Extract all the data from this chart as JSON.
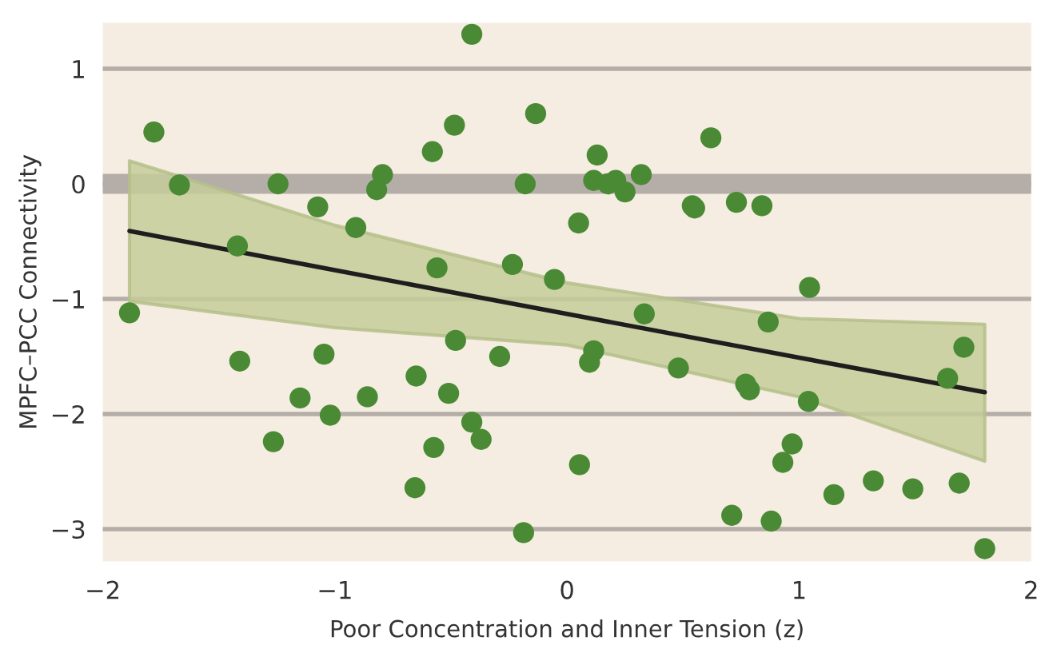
{
  "chart_data": {
    "type": "scatter",
    "xlabel": "Poor Concentration and Inner Tension (z)",
    "ylabel": "MPFC–PCC Connectivity",
    "xlim": [
      -2,
      2
    ],
    "ylim": [
      -3.28,
      1.4
    ],
    "xticks": [
      {
        "value": -2,
        "label": "−2"
      },
      {
        "value": -1,
        "label": "−1"
      },
      0,
      1,
      2
    ],
    "yticks": [
      {
        "value": -3,
        "label": "−3"
      },
      {
        "value": -2,
        "label": "−2"
      },
      {
        "value": -1,
        "label": "−1"
      },
      0,
      1
    ],
    "grid": "y",
    "ref_lines": [
      {
        "axis": "y",
        "value": 0,
        "color": "#b5aea8"
      }
    ],
    "series": [
      {
        "color": "#4a8a35",
        "marker": "circle",
        "x": [
          -1.885,
          -1.78,
          -1.67,
          -1.42,
          -1.245,
          -1.074,
          -0.91,
          -0.82,
          -0.795,
          -0.58,
          -0.485,
          -0.41,
          -0.56,
          -0.235,
          -0.18,
          -0.135,
          -0.054,
          0.13,
          0.05,
          0.115,
          0.176,
          0.21,
          0.25,
          0.32,
          0.62,
          0.54,
          0.55,
          0.73,
          0.84,
          1.045,
          0.333,
          -1.41,
          -1.047,
          -1.15,
          -1.02,
          -1.265,
          -0.86,
          -0.65,
          -0.48,
          -0.51,
          -0.29,
          -0.41,
          -0.37,
          -0.574,
          -0.655,
          -0.187,
          0.867,
          0.115,
          0.097,
          0.48,
          0.77,
          0.786,
          1.04,
          1.71,
          1.64,
          0.97,
          0.93,
          0.054,
          1.15,
          1.32,
          1.49,
          1.69,
          0.71,
          0.88,
          1.8
        ],
        "values": [
          -1.12,
          0.45,
          -0.01,
          -0.54,
          0.0,
          -0.2,
          -0.38,
          -0.05,
          0.08,
          0.28,
          0.51,
          1.3,
          -0.73,
          -0.7,
          0.0,
          0.61,
          -0.83,
          0.25,
          -0.34,
          0.03,
          0.0,
          0.03,
          -0.07,
          0.08,
          0.4,
          -0.19,
          -0.21,
          -0.16,
          -0.19,
          -0.9,
          -1.13,
          -1.54,
          -1.48,
          -1.86,
          -2.01,
          -2.24,
          -1.85,
          -1.67,
          -1.36,
          -1.82,
          -1.5,
          -2.07,
          -2.22,
          -2.29,
          -2.64,
          -3.03,
          -1.2,
          -1.45,
          -1.55,
          -1.6,
          -1.74,
          -1.79,
          -1.89,
          -1.42,
          -1.69,
          -2.26,
          -2.42,
          -2.44,
          -2.7,
          -2.58,
          -2.65,
          -2.6,
          -2.88,
          -2.93,
          -3.17
        ]
      },
      {
        "type": "line",
        "color": "#1e1e1e",
        "line_style": "solid",
        "x": [
          -1.885,
          -1,
          0,
          1,
          1.8
        ],
        "values": [
          -0.41,
          -0.75,
          -1.13,
          -1.51,
          -1.81
        ],
        "lower": [
          -1.02,
          -1.25,
          -1.4,
          -1.85,
          -2.41
        ],
        "upper": [
          0.2,
          -0.36,
          -0.86,
          -1.17,
          -1.22
        ]
      }
    ]
  }
}
